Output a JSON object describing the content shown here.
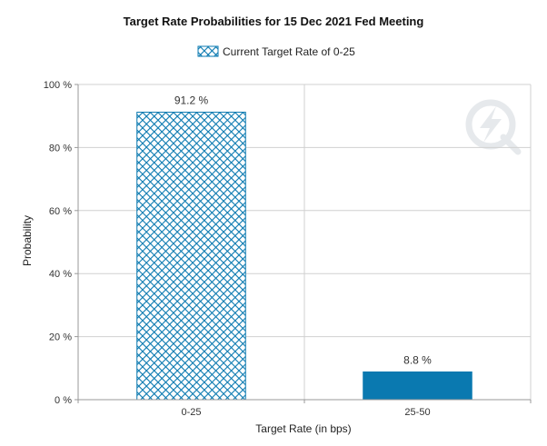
{
  "chart_data": {
    "type": "bar",
    "title": "Target Rate Probabilities for 15 Dec 2021 Fed Meeting",
    "xlabel": "Target Rate (in bps)",
    "ylabel": "Probability",
    "categories": [
      "0-25",
      "25-50"
    ],
    "series": [
      {
        "name": "Current Target Rate of 0-25",
        "values": [
          91.2,
          8.8
        ]
      }
    ],
    "data_labels": [
      "91.2 %",
      "8.8 %"
    ],
    "y_ticks": [
      0,
      20,
      40,
      60,
      80,
      100
    ],
    "y_tick_labels": [
      "0 %",
      "20 %",
      "40 %",
      "60 %",
      "80 %",
      "100 %"
    ],
    "ylim": [
      0,
      100
    ],
    "grid": true,
    "legend_position": "top-center",
    "bar_styles": [
      "crosshatch",
      "solid"
    ],
    "colors": {
      "bar": "#0a79b0",
      "hatch_bg": "#ffffff",
      "grid": "#d0d0d0",
      "axis": "#999999"
    },
    "watermark_icon": "q-lightning-logo-icon"
  }
}
